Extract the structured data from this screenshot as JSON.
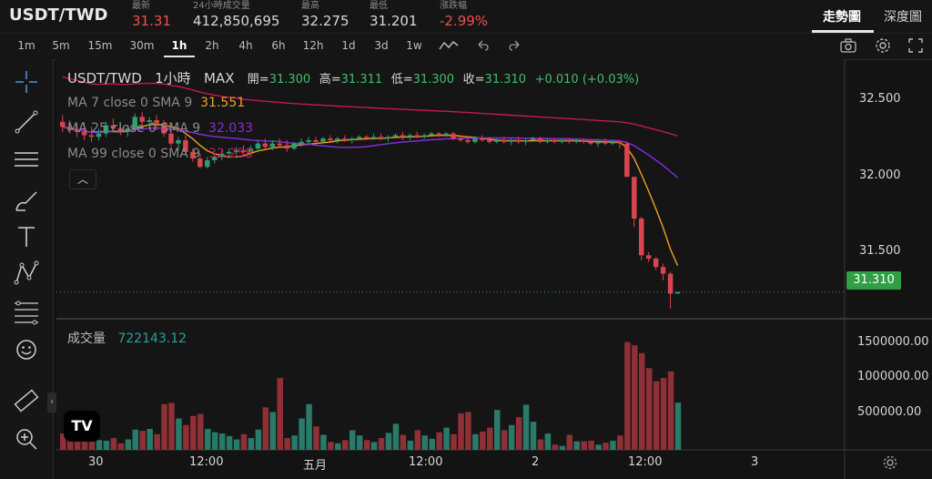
{
  "header": {
    "pair": "USDT/TWD",
    "stats": [
      {
        "label": "最新",
        "value": "31.31",
        "tone": "red"
      },
      {
        "label": "24小時成交量",
        "value": "412,850,695",
        "tone": "normal"
      },
      {
        "label": "最高",
        "value": "32.275",
        "tone": "normal"
      },
      {
        "label": "最低",
        "value": "31.201",
        "tone": "normal"
      },
      {
        "label": "漲跌幅",
        "value": "-2.99%",
        "tone": "red"
      }
    ],
    "views": [
      "走勢圖",
      "深度圖"
    ],
    "active_view": "走勢圖"
  },
  "toolbar": {
    "timeframes": [
      "1m",
      "5m",
      "15m",
      "30m",
      "1h",
      "2h",
      "4h",
      "6h",
      "12h",
      "1d",
      "3d",
      "1w"
    ],
    "active_timeframe": "1h",
    "icons": [
      "indicator-icon",
      "undo-icon",
      "redo-icon",
      "camera-icon",
      "settings-icon",
      "fullscreen-icon"
    ]
  },
  "left_tools": [
    "crosshair-icon",
    "trendline-icon",
    "horizontal-lines-icon",
    "brush-icon",
    "text-icon",
    "pattern-icon",
    "fib-icon",
    "emoji-icon",
    "ruler-icon",
    "zoom-icon"
  ],
  "legend": {
    "symbol": "USDT/TWD",
    "interval": "1小時",
    "range": "MAX",
    "open_label": "開=",
    "open": "31.300",
    "high_label": "高=",
    "high": "31.311",
    "low_label": "低=",
    "low": "31.300",
    "close_label": "收=",
    "close": "31.310",
    "change": "+0.010 (+0.03%)",
    "ma": [
      {
        "text": "MA 7 close 0 SMA 9",
        "value": "31.551",
        "color": "#f0a020"
      },
      {
        "text": "MA 25 close 0 SMA 9",
        "value": "32.033",
        "color": "#8a2be2"
      },
      {
        "text": "MA 99 close 0 SMA 9",
        "value": "32.258",
        "color": "#c2185b"
      }
    ],
    "collapse_icon": "chevron-up-icon"
  },
  "price_axis": {
    "labels": [
      "32.500",
      "32.000",
      "31.500"
    ],
    "current_price": "31.310"
  },
  "volume": {
    "label": "成交量",
    "value": "722143.12",
    "axis_labels": [
      "1500000.00",
      "1000000.00",
      "500000.00"
    ]
  },
  "time_axis": [
    "30",
    "12:00",
    "五月",
    "12:00",
    "2",
    "12:00",
    "3"
  ],
  "colors": {
    "up": "#2e9e6e",
    "down": "#d9444e",
    "vol_up": "#2a7a6a",
    "vol_down": "#8f3036",
    "ma7": "#f0a020",
    "ma25": "#8a2be2",
    "ma99": "#c2185b"
  },
  "chart_data": {
    "type": "candlestick",
    "y_range": [
      31.15,
      32.7
    ],
    "volume_range": [
      0,
      1700000
    ],
    "current_price": 31.31,
    "candles": [
      {
        "o": 32.33,
        "h": 32.37,
        "l": 32.27,
        "c": 32.3,
        "v": 250000
      },
      {
        "o": 32.3,
        "h": 32.34,
        "l": 32.26,
        "c": 32.28,
        "v": 230000
      },
      {
        "o": 32.28,
        "h": 32.32,
        "l": 32.24,
        "c": 32.27,
        "v": 180000
      },
      {
        "o": 32.27,
        "h": 32.33,
        "l": 32.22,
        "c": 32.25,
        "v": 290000
      },
      {
        "o": 32.25,
        "h": 32.3,
        "l": 32.21,
        "c": 32.24,
        "v": 200000
      },
      {
        "o": 32.24,
        "h": 32.29,
        "l": 32.22,
        "c": 32.26,
        "v": 150000
      },
      {
        "o": 32.26,
        "h": 32.33,
        "l": 32.24,
        "c": 32.31,
        "v": 140000
      },
      {
        "o": 32.31,
        "h": 32.35,
        "l": 32.27,
        "c": 32.29,
        "v": 180000
      },
      {
        "o": 32.29,
        "h": 32.32,
        "l": 32.25,
        "c": 32.27,
        "v": 100000
      },
      {
        "o": 32.27,
        "h": 32.31,
        "l": 32.24,
        "c": 32.29,
        "v": 160000
      },
      {
        "o": 32.29,
        "h": 32.38,
        "l": 32.27,
        "c": 32.36,
        "v": 310000
      },
      {
        "o": 32.36,
        "h": 32.39,
        "l": 32.31,
        "c": 32.33,
        "v": 290000
      },
      {
        "o": 32.33,
        "h": 32.36,
        "l": 32.3,
        "c": 32.34,
        "v": 320000
      },
      {
        "o": 32.34,
        "h": 32.37,
        "l": 32.28,
        "c": 32.32,
        "v": 240000
      },
      {
        "o": 32.32,
        "h": 32.34,
        "l": 32.24,
        "c": 32.26,
        "v": 700000
      },
      {
        "o": 32.26,
        "h": 32.28,
        "l": 32.18,
        "c": 32.2,
        "v": 720000
      },
      {
        "o": 32.2,
        "h": 32.24,
        "l": 32.16,
        "c": 32.22,
        "v": 480000
      },
      {
        "o": 32.22,
        "h": 32.25,
        "l": 32.13,
        "c": 32.15,
        "v": 380000
      },
      {
        "o": 32.15,
        "h": 32.17,
        "l": 32.09,
        "c": 32.11,
        "v": 520000
      },
      {
        "o": 32.11,
        "h": 32.14,
        "l": 32.05,
        "c": 32.06,
        "v": 550000
      },
      {
        "o": 32.06,
        "h": 32.12,
        "l": 32.05,
        "c": 32.1,
        "v": 320000
      },
      {
        "o": 32.1,
        "h": 32.14,
        "l": 32.08,
        "c": 32.12,
        "v": 270000
      },
      {
        "o": 32.12,
        "h": 32.16,
        "l": 32.1,
        "c": 32.14,
        "v": 250000
      },
      {
        "o": 32.14,
        "h": 32.17,
        "l": 32.12,
        "c": 32.15,
        "v": 210000
      },
      {
        "o": 32.15,
        "h": 32.18,
        "l": 32.13,
        "c": 32.16,
        "v": 160000
      },
      {
        "o": 32.16,
        "h": 32.19,
        "l": 32.13,
        "c": 32.15,
        "v": 240000
      },
      {
        "o": 32.15,
        "h": 32.19,
        "l": 32.14,
        "c": 32.17,
        "v": 180000
      },
      {
        "o": 32.17,
        "h": 32.22,
        "l": 32.15,
        "c": 32.2,
        "v": 310000
      },
      {
        "o": 32.2,
        "h": 32.23,
        "l": 32.17,
        "c": 32.18,
        "v": 650000
      },
      {
        "o": 32.18,
        "h": 32.22,
        "l": 32.16,
        "c": 32.2,
        "v": 580000
      },
      {
        "o": 32.2,
        "h": 32.23,
        "l": 32.18,
        "c": 32.19,
        "v": 1100000
      },
      {
        "o": 32.19,
        "h": 32.22,
        "l": 32.15,
        "c": 32.17,
        "v": 180000
      },
      {
        "o": 32.17,
        "h": 32.21,
        "l": 32.16,
        "c": 32.2,
        "v": 220000
      },
      {
        "o": 32.2,
        "h": 32.23,
        "l": 32.18,
        "c": 32.21,
        "v": 480000
      },
      {
        "o": 32.21,
        "h": 32.24,
        "l": 32.19,
        "c": 32.22,
        "v": 700000
      },
      {
        "o": 32.22,
        "h": 32.24,
        "l": 32.19,
        "c": 32.21,
        "v": 360000
      },
      {
        "o": 32.21,
        "h": 32.24,
        "l": 32.2,
        "c": 32.23,
        "v": 230000
      },
      {
        "o": 32.23,
        "h": 32.25,
        "l": 32.21,
        "c": 32.22,
        "v": 120000
      },
      {
        "o": 32.22,
        "h": 32.24,
        "l": 32.2,
        "c": 32.23,
        "v": 100000
      },
      {
        "o": 32.23,
        "h": 32.25,
        "l": 32.21,
        "c": 32.22,
        "v": 150000
      },
      {
        "o": 32.22,
        "h": 32.24,
        "l": 32.2,
        "c": 32.23,
        "v": 300000
      },
      {
        "o": 32.23,
        "h": 32.25,
        "l": 32.22,
        "c": 32.24,
        "v": 220000
      },
      {
        "o": 32.24,
        "h": 32.25,
        "l": 32.22,
        "c": 32.23,
        "v": 150000
      },
      {
        "o": 32.23,
        "h": 32.26,
        "l": 32.22,
        "c": 32.24,
        "v": 120000
      },
      {
        "o": 32.24,
        "h": 32.26,
        "l": 32.22,
        "c": 32.23,
        "v": 180000
      },
      {
        "o": 32.23,
        "h": 32.25,
        "l": 32.21,
        "c": 32.24,
        "v": 260000
      },
      {
        "o": 32.24,
        "h": 32.26,
        "l": 32.23,
        "c": 32.25,
        "v": 400000
      },
      {
        "o": 32.25,
        "h": 32.27,
        "l": 32.22,
        "c": 32.24,
        "v": 230000
      },
      {
        "o": 32.24,
        "h": 32.26,
        "l": 32.22,
        "c": 32.25,
        "v": 140000
      },
      {
        "o": 32.25,
        "h": 32.27,
        "l": 32.23,
        "c": 32.24,
        "v": 300000
      },
      {
        "o": 32.24,
        "h": 32.26,
        "l": 32.23,
        "c": 32.25,
        "v": 220000
      },
      {
        "o": 32.25,
        "h": 32.27,
        "l": 32.24,
        "c": 32.26,
        "v": 170000
      },
      {
        "o": 32.26,
        "h": 32.27,
        "l": 32.24,
        "c": 32.25,
        "v": 270000
      },
      {
        "o": 32.25,
        "h": 32.27,
        "l": 32.24,
        "c": 32.26,
        "v": 340000
      },
      {
        "o": 32.26,
        "h": 32.27,
        "l": 32.22,
        "c": 32.23,
        "v": 240000
      },
      {
        "o": 32.23,
        "h": 32.25,
        "l": 32.21,
        "c": 32.22,
        "v": 560000
      },
      {
        "o": 32.22,
        "h": 32.24,
        "l": 32.2,
        "c": 32.21,
        "v": 580000
      },
      {
        "o": 32.21,
        "h": 32.24,
        "l": 32.2,
        "c": 32.23,
        "v": 240000
      },
      {
        "o": 32.23,
        "h": 32.25,
        "l": 32.21,
        "c": 32.22,
        "v": 280000
      },
      {
        "o": 32.22,
        "h": 32.24,
        "l": 32.2,
        "c": 32.21,
        "v": 340000
      },
      {
        "o": 32.21,
        "h": 32.23,
        "l": 32.2,
        "c": 32.22,
        "v": 610000
      },
      {
        "o": 32.22,
        "h": 32.24,
        "l": 32.2,
        "c": 32.21,
        "v": 300000
      },
      {
        "o": 32.21,
        "h": 32.23,
        "l": 32.19,
        "c": 32.22,
        "v": 380000
      },
      {
        "o": 32.22,
        "h": 32.24,
        "l": 32.2,
        "c": 32.21,
        "v": 500000
      },
      {
        "o": 32.21,
        "h": 32.23,
        "l": 32.19,
        "c": 32.22,
        "v": 690000
      },
      {
        "o": 32.22,
        "h": 32.24,
        "l": 32.21,
        "c": 32.23,
        "v": 430000
      },
      {
        "o": 32.23,
        "h": 32.24,
        "l": 32.2,
        "c": 32.21,
        "v": 160000
      },
      {
        "o": 32.21,
        "h": 32.23,
        "l": 32.2,
        "c": 32.22,
        "v": 250000
      },
      {
        "o": 32.22,
        "h": 32.23,
        "l": 32.2,
        "c": 32.21,
        "v": 80000
      },
      {
        "o": 32.21,
        "h": 32.23,
        "l": 32.2,
        "c": 32.22,
        "v": 60000
      },
      {
        "o": 32.22,
        "h": 32.23,
        "l": 32.2,
        "c": 32.21,
        "v": 230000
      },
      {
        "o": 32.21,
        "h": 32.23,
        "l": 32.2,
        "c": 32.22,
        "v": 130000
      },
      {
        "o": 32.22,
        "h": 32.23,
        "l": 32.2,
        "c": 32.21,
        "v": 130000
      },
      {
        "o": 32.21,
        "h": 32.22,
        "l": 32.19,
        "c": 32.2,
        "v": 140000
      },
      {
        "o": 32.2,
        "h": 32.22,
        "l": 32.18,
        "c": 32.21,
        "v": 80000
      },
      {
        "o": 32.21,
        "h": 32.23,
        "l": 32.19,
        "c": 32.2,
        "v": 110000
      },
      {
        "o": 32.2,
        "h": 32.22,
        "l": 32.19,
        "c": 32.21,
        "v": 140000
      },
      {
        "o": 32.21,
        "h": 32.22,
        "l": 32.17,
        "c": 32.2,
        "v": 220000
      },
      {
        "o": 32.2,
        "h": 32.21,
        "l": 32.0,
        "c": 32.0,
        "v": 1650000
      },
      {
        "o": 32.0,
        "h": 32.0,
        "l": 31.7,
        "c": 31.75,
        "v": 1600000
      },
      {
        "o": 31.75,
        "h": 31.76,
        "l": 31.5,
        "c": 31.53,
        "v": 1480000
      },
      {
        "o": 31.53,
        "h": 31.55,
        "l": 31.49,
        "c": 31.51,
        "v": 1250000
      },
      {
        "o": 31.51,
        "h": 31.52,
        "l": 31.44,
        "c": 31.46,
        "v": 1050000
      },
      {
        "o": 31.46,
        "h": 31.48,
        "l": 31.38,
        "c": 31.42,
        "v": 1100000
      },
      {
        "o": 31.42,
        "h": 31.43,
        "l": 31.21,
        "c": 31.3,
        "v": 1200000
      },
      {
        "o": 31.3,
        "h": 31.311,
        "l": 31.3,
        "c": 31.31,
        "v": 722143
      }
    ]
  }
}
